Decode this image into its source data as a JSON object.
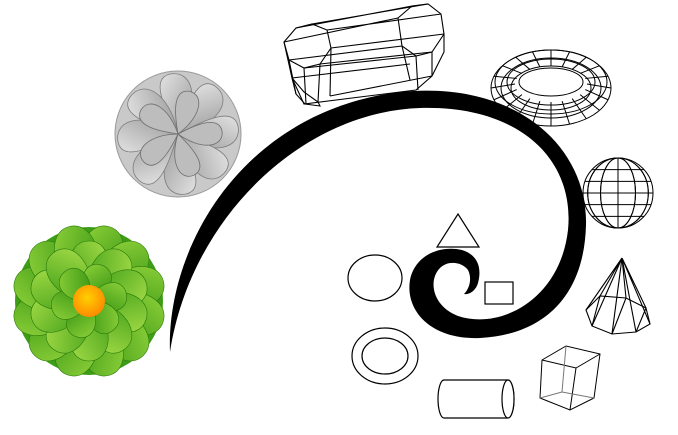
{
  "colors": {
    "background": "#ffffff",
    "spiral": "#000000",
    "stroke": "#000000",
    "green_light": "#8fd13a",
    "green_dark": "#2e8f0f",
    "center_orange": "#ff9a00",
    "center_yellow": "#ffd000",
    "gray_light": "#d8d8d8",
    "gray_dark": "#8a8a8a"
  },
  "items": [
    {
      "id": "green-flower",
      "icon": "flower-icon"
    },
    {
      "id": "gray-flower",
      "icon": "flower-icon"
    },
    {
      "id": "spiral",
      "icon": "spiral-icon"
    },
    {
      "id": "wireframe-prism",
      "icon": "octagonal-prism-icon"
    },
    {
      "id": "wireframe-torus",
      "icon": "torus-icon"
    },
    {
      "id": "wireframe-sphere",
      "icon": "sphere-icon"
    },
    {
      "id": "wireframe-pyramid",
      "icon": "pyramid-icon"
    },
    {
      "id": "wireframe-cube",
      "icon": "cube-icon"
    },
    {
      "id": "cylinder",
      "icon": "cylinder-icon"
    },
    {
      "id": "ring",
      "icon": "ring-icon"
    },
    {
      "id": "ellipse",
      "icon": "ellipse-icon"
    },
    {
      "id": "triangle",
      "icon": "triangle-icon"
    },
    {
      "id": "square",
      "icon": "square-icon"
    }
  ]
}
